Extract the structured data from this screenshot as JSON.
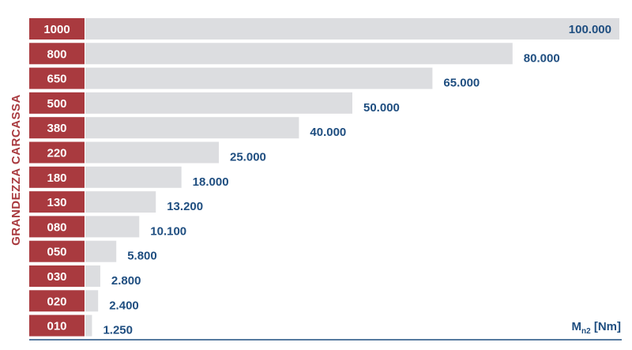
{
  "chart_data": {
    "type": "bar",
    "orientation": "horizontal",
    "ylabel": "GRANDEZZA CARCASSA",
    "unit_label": {
      "main": "M",
      "sub": "n2",
      "rest": " [Nm]"
    },
    "categories": [
      "1000",
      "800",
      "650",
      "500",
      "380",
      "220",
      "180",
      "130",
      "080",
      "050",
      "030",
      "020",
      "010"
    ],
    "values": [
      100000,
      80000,
      65000,
      50000,
      40000,
      25000,
      18000,
      13200,
      10100,
      5800,
      2800,
      2400,
      1250
    ],
    "value_labels": [
      "100.000",
      "80.000",
      "65.000",
      "50.000",
      "40.000",
      "25.000",
      "18.000",
      "13.200",
      "10.100",
      "5.800",
      "2.800",
      "2.400",
      "1.250"
    ],
    "xlim": [
      0,
      100000
    ],
    "grid": false,
    "legend": "none",
    "colors": {
      "category_box": "#a93a3f",
      "bar": "#dcdde0",
      "value_text": "#1f4e80",
      "ylabel": "#a93a3f",
      "axis": "#1f4e80"
    }
  }
}
